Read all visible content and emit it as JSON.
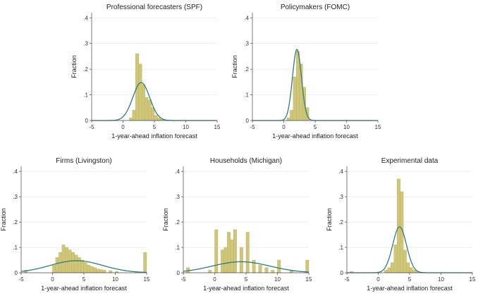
{
  "colors": {
    "bar": "#cfc679",
    "curve": "#2e7d7a"
  },
  "chart_data": [
    {
      "type": "bar",
      "title": "Professional forecasters (SPF)",
      "xlabel": "1-year-ahead inflation forecast",
      "ylabel": "Fraction",
      "xlim": [
        -5,
        15
      ],
      "ylim": [
        0,
        0.42
      ],
      "xticks": [
        "-5",
        "0",
        "5",
        "10",
        "15"
      ],
      "yticks": [
        "0",
        ".1",
        ".2",
        ".3",
        ".4"
      ],
      "grid": true,
      "bin_width": 0.5,
      "bins": [
        {
          "x": 1.0,
          "y": 0.01
        },
        {
          "x": 1.5,
          "y": 0.04
        },
        {
          "x": 2.0,
          "y": 0.26
        },
        {
          "x": 2.5,
          "y": 0.22
        },
        {
          "x": 3.0,
          "y": 0.14
        },
        {
          "x": 3.5,
          "y": 0.09
        },
        {
          "x": 4.0,
          "y": 0.08
        },
        {
          "x": 4.5,
          "y": 0.05
        },
        {
          "x": 5.0,
          "y": 0.02
        },
        {
          "x": 5.5,
          "y": 0.01
        },
        {
          "x": 6.0,
          "y": 0.005
        }
      ],
      "normal_curve": {
        "mean": 2.9,
        "sd": 1.35
      }
    },
    {
      "type": "bar",
      "title": "Policymakers (FOMC)",
      "xlabel": "1-year-ahead inflation forecast",
      "ylabel": "Fraction",
      "xlim": [
        -5,
        15
      ],
      "ylim": [
        0,
        0.42
      ],
      "xticks": [
        "-5",
        "0",
        "5",
        "10",
        "15"
      ],
      "yticks": [
        "0",
        ".1",
        ".2",
        ".3",
        ".4"
      ],
      "grid": true,
      "bin_width": 0.5,
      "bins": [
        {
          "x": 0.5,
          "y": 0.01
        },
        {
          "x": 1.0,
          "y": 0.04
        },
        {
          "x": 1.5,
          "y": 0.17
        },
        {
          "x": 2.0,
          "y": 0.27
        },
        {
          "x": 2.5,
          "y": 0.22
        },
        {
          "x": 3.0,
          "y": 0.13
        },
        {
          "x": 3.5,
          "y": 0.05
        }
      ],
      "normal_curve": {
        "mean": 2.1,
        "sd": 0.72
      }
    },
    {
      "type": "bar",
      "title": "Firms (Livingston)",
      "xlabel": "1-year-ahead inflation forecast",
      "ylabel": "Fraction",
      "xlim": [
        -5,
        15
      ],
      "ylim": [
        0,
        0.42
      ],
      "xticks": [
        "-5",
        "0",
        "5",
        "10",
        "15"
      ],
      "yticks": [
        "0",
        ".1",
        ".2",
        ".3",
        ".4"
      ],
      "grid": true,
      "bin_width": 0.5,
      "bins": [
        {
          "x": -4.5,
          "y": 0.01
        },
        {
          "x": 0.0,
          "y": 0.03
        },
        {
          "x": 0.5,
          "y": 0.06
        },
        {
          "x": 1.0,
          "y": 0.08
        },
        {
          "x": 1.5,
          "y": 0.11
        },
        {
          "x": 2.0,
          "y": 0.1
        },
        {
          "x": 2.5,
          "y": 0.09
        },
        {
          "x": 3.0,
          "y": 0.08
        },
        {
          "x": 3.5,
          "y": 0.07
        },
        {
          "x": 4.0,
          "y": 0.06
        },
        {
          "x": 4.5,
          "y": 0.05
        },
        {
          "x": 5.0,
          "y": 0.04
        },
        {
          "x": 5.5,
          "y": 0.03
        },
        {
          "x": 6.0,
          "y": 0.025
        },
        {
          "x": 6.5,
          "y": 0.02
        },
        {
          "x": 7.0,
          "y": 0.015
        },
        {
          "x": 7.5,
          "y": 0.012
        },
        {
          "x": 8.0,
          "y": 0.01
        },
        {
          "x": 9.0,
          "y": 0.008
        },
        {
          "x": 10.0,
          "y": 0.005
        },
        {
          "x": 14.5,
          "y": 0.08
        }
      ],
      "normal_curve": {
        "mean": 3.8,
        "sd": 4.2
      }
    },
    {
      "type": "bar",
      "title": "Households (Michigan)",
      "xlabel": "1-year-ahead inflation forecast",
      "ylabel": "Fraction",
      "xlim": [
        -5,
        15
      ],
      "ylim": [
        0,
        0.42
      ],
      "xticks": [
        "-5",
        "0",
        "5",
        "10",
        "15"
      ],
      "yticks": [
        "0",
        ".1",
        ".2",
        ".3",
        ".4"
      ],
      "grid": true,
      "bin_width": 0.5,
      "bins": [
        {
          "x": -4.5,
          "y": 0.02
        },
        {
          "x": -1.0,
          "y": 0.01
        },
        {
          "x": 0.0,
          "y": 0.17
        },
        {
          "x": 1.0,
          "y": 0.09
        },
        {
          "x": 1.5,
          "y": 0.1
        },
        {
          "x": 2.0,
          "y": 0.16
        },
        {
          "x": 2.5,
          "y": 0.13
        },
        {
          "x": 3.0,
          "y": 0.17
        },
        {
          "x": 4.0,
          "y": 0.1
        },
        {
          "x": 5.0,
          "y": 0.16
        },
        {
          "x": 6.0,
          "y": 0.05
        },
        {
          "x": 7.0,
          "y": 0.03
        },
        {
          "x": 8.0,
          "y": 0.02
        },
        {
          "x": 9.0,
          "y": 0.01
        },
        {
          "x": 10.0,
          "y": 0.05
        },
        {
          "x": 12.0,
          "y": 0.01
        },
        {
          "x": 14.5,
          "y": 0.05
        }
      ],
      "normal_curve": {
        "mean": 4.2,
        "sd": 4.6
      }
    },
    {
      "type": "bar",
      "title": "Experimental data",
      "xlabel": "1-year-ahead inflation forecast",
      "ylabel": "Fraction",
      "xlim": [
        -5,
        15
      ],
      "ylim": [
        0,
        0.42
      ],
      "xticks": [
        "-5",
        "0",
        "5",
        "10",
        "15"
      ],
      "yticks": [
        "0",
        ".1",
        ".2",
        ".3",
        ".4"
      ],
      "grid": true,
      "bin_width": 0.5,
      "bins": [
        {
          "x": -4.5,
          "y": 0.005
        },
        {
          "x": 1.0,
          "y": 0.01
        },
        {
          "x": 1.5,
          "y": 0.02
        },
        {
          "x": 2.0,
          "y": 0.04
        },
        {
          "x": 2.5,
          "y": 0.11
        },
        {
          "x": 3.0,
          "y": 0.37
        },
        {
          "x": 3.5,
          "y": 0.32
        },
        {
          "x": 4.0,
          "y": 0.09
        },
        {
          "x": 4.5,
          "y": 0.04
        },
        {
          "x": 5.0,
          "y": 0.02
        },
        {
          "x": 5.5,
          "y": 0.01
        },
        {
          "x": 6.0,
          "y": 0.005
        }
      ],
      "normal_curve": {
        "mean": 3.4,
        "sd": 1.1
      }
    }
  ]
}
